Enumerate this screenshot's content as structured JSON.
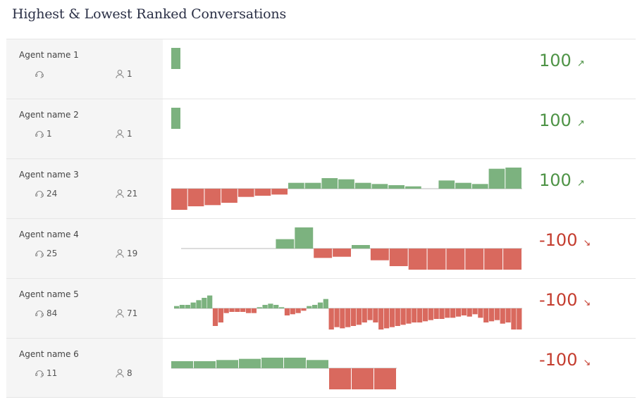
{
  "title": "Highest & Lowest Ranked Conversations",
  "colors": {
    "positive": "#7cb27f",
    "negative": "#d9695e",
    "baseline": "#dcdcdc",
    "score_positive": "#4e9346",
    "score_negative": "#c43d2f"
  },
  "rows": [
    {
      "agent": "Agent name 1",
      "calls": "",
      "users": "1",
      "score": "100",
      "arrow": "↗",
      "trend": "up",
      "bars": [
        18
      ]
    },
    {
      "agent": "Agent name 2",
      "calls": "1",
      "users": "1",
      "score": "100",
      "arrow": "↗",
      "trend": "up",
      "bars": [
        18
      ]
    },
    {
      "agent": "Agent name 3",
      "calls": "24",
      "users": "21",
      "score": "100",
      "arrow": "↗",
      "trend": "up",
      "bars": [
        -18,
        -15,
        -14,
        -12,
        -7,
        -6,
        -5,
        5,
        5,
        9,
        8,
        5,
        4,
        3,
        2,
        0,
        7,
        5,
        4,
        17,
        18
      ]
    },
    {
      "agent": "Agent name 4",
      "calls": "25",
      "users": "19",
      "score": "-100",
      "arrow": "↘",
      "trend": "down",
      "bars": [
        0,
        0,
        0,
        0,
        0,
        8,
        18,
        -8,
        -7,
        3,
        -10,
        -15,
        -18,
        -18,
        -18,
        -18,
        -18,
        -18
      ]
    },
    {
      "agent": "Agent name 5",
      "calls": "84",
      "users": "71",
      "score": "-100",
      "arrow": "↘",
      "trend": "down",
      "bars": [
        0,
        0,
        0,
        0,
        0,
        0,
        0,
        0,
        0,
        0,
        0,
        0,
        0,
        0,
        0,
        0,
        0,
        0,
        0,
        0,
        0,
        0,
        0,
        0,
        0,
        0,
        0,
        0,
        0,
        0,
        0,
        0,
        0,
        0,
        0,
        0,
        0,
        0,
        0,
        0,
        0,
        0,
        0,
        0,
        0,
        0,
        0,
        0,
        0,
        0,
        0,
        0,
        0,
        0,
        0,
        0,
        0,
        0,
        0,
        0,
        0,
        0,
        0,
        0,
        0,
        0,
        0,
        0,
        0,
        0,
        0,
        0
      ],
      "bars_override": [
        2,
        3,
        3,
        5,
        7,
        9,
        11,
        -15,
        -12,
        -4,
        -3,
        -3,
        -3,
        -4,
        -4,
        1,
        3,
        4,
        3,
        1,
        -6,
        -5,
        -4,
        -2,
        2,
        3,
        5,
        8,
        -18,
        -16,
        -17,
        -16,
        -15,
        -14,
        -12,
        -10,
        -12,
        -18,
        -17,
        -16,
        -15,
        -14,
        -13,
        -12,
        -12,
        -11,
        -10,
        -9,
        -9,
        -8,
        -8,
        -7,
        -6,
        -7,
        -5,
        -8,
        -12,
        -11,
        -10,
        -13,
        -12,
        -18,
        -18
      ]
    },
    {
      "agent": "Agent name 6",
      "calls": "11",
      "users": "8",
      "score": "-100",
      "arrow": "↘",
      "trend": "down",
      "bars": [
        6,
        6,
        7,
        8,
        9,
        9,
        7,
        -18,
        -18,
        -18
      ]
    }
  ]
}
